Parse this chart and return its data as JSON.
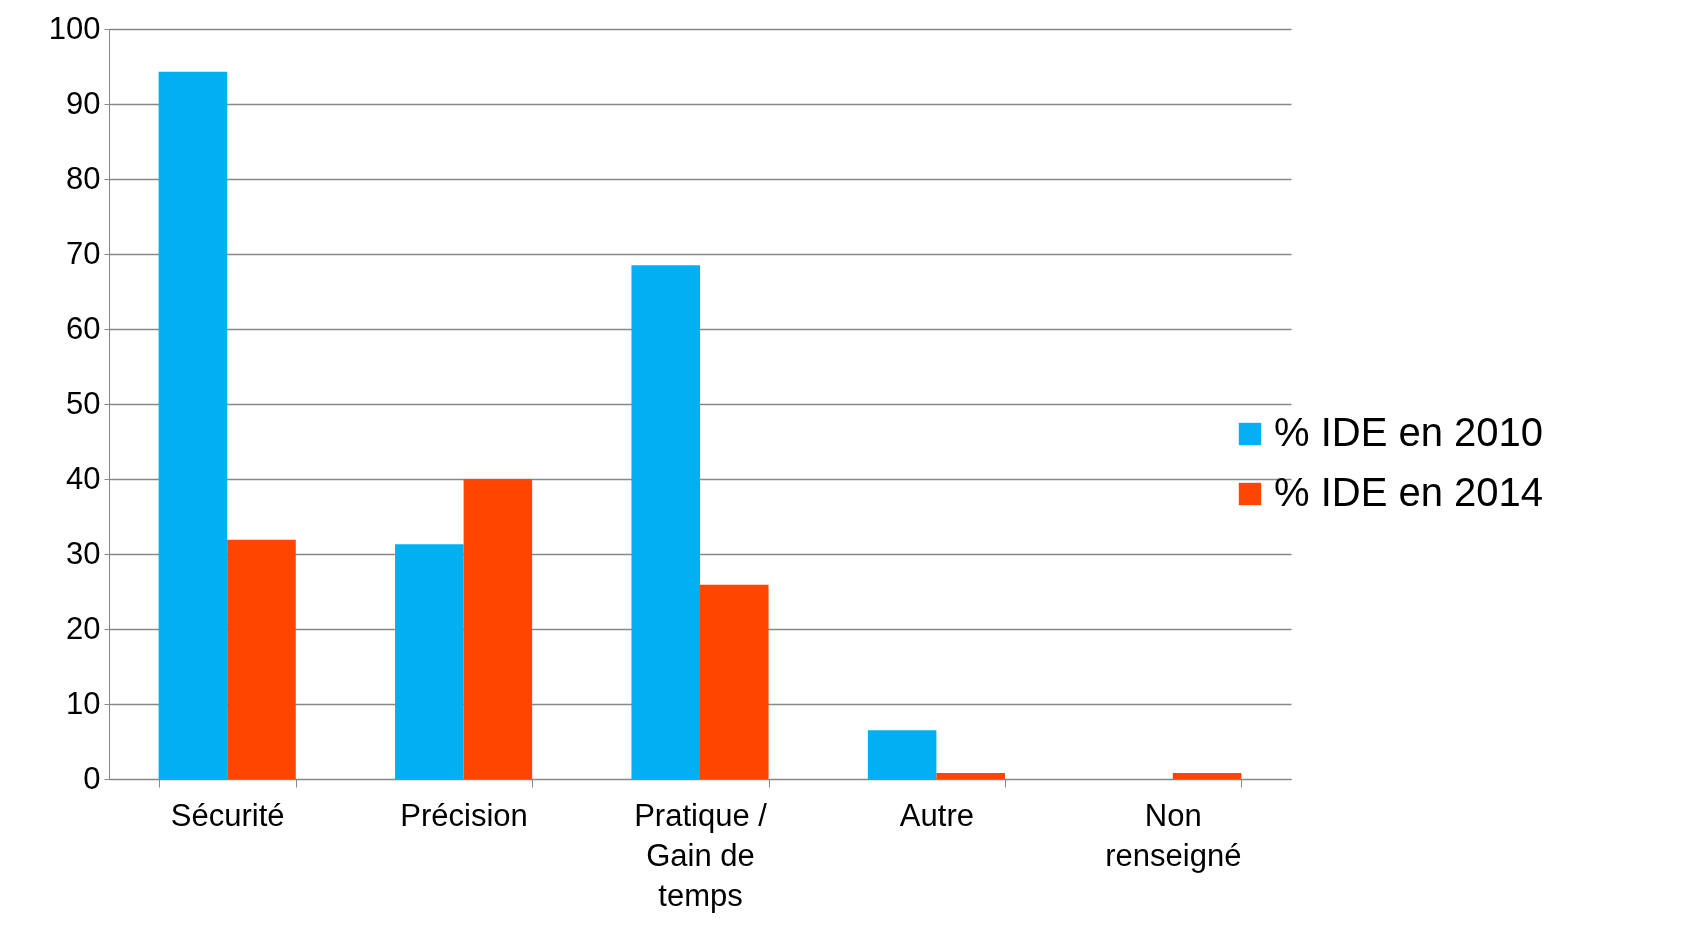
{
  "chart_data": {
    "type": "bar",
    "categories": [
      "Sécurité",
      "Précision",
      "Pratique / Gain de temps",
      "Autre",
      "Non renseigné"
    ],
    "series": [
      {
        "name": "% IDE en 2010",
        "color": "#00b0f0",
        "values": [
          94.3,
          31.3,
          68.5,
          6.5,
          0
        ]
      },
      {
        "name": "% IDE en 2014",
        "color": "#ff4500",
        "values": [
          31.9,
          40,
          25.9,
          0.8,
          0.8
        ]
      }
    ],
    "ylim": [
      0,
      100
    ],
    "yticks": [
      0,
      10,
      20,
      30,
      40,
      50,
      60,
      70,
      80,
      90,
      100
    ],
    "grid": "y",
    "legend": "right"
  }
}
